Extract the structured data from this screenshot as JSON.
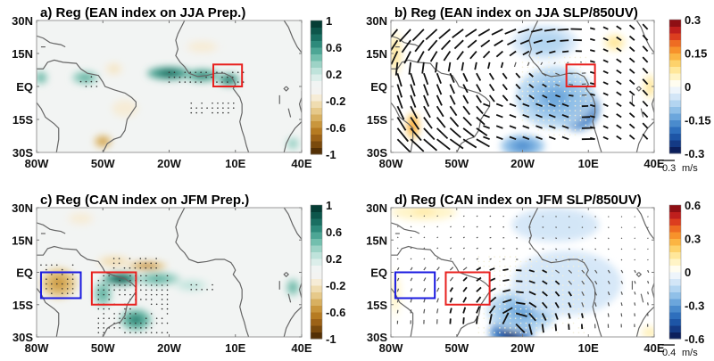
{
  "chart_data": [
    {
      "id": "a",
      "type": "heatmap",
      "title": "a) Reg (EAN index on JJA Prep.)",
      "field": "precipitation",
      "palette": "brown-green",
      "xlim": [
        -80,
        40
      ],
      "ylim": [
        -30,
        30
      ],
      "xticks": [
        "80W",
        "50W",
        "20W",
        "10E",
        "40E"
      ],
      "xtick_values": [
        -80,
        -50,
        -20,
        10,
        40
      ],
      "yticks": [
        "30N",
        "15N",
        "EQ",
        "15S",
        "30S"
      ],
      "ytick_values": [
        30,
        15,
        0,
        -15,
        -30
      ],
      "colorbar": {
        "labels": [
          "1",
          "0.6",
          "0.2",
          "-0.2",
          "-0.6",
          "-1"
        ],
        "range": [
          -1,
          1
        ]
      },
      "boxes": [
        {
          "color": "#e8201e",
          "lon": [
            0,
            13
          ],
          "lat": [
            0,
            10
          ]
        }
      ],
      "blobs": [
        {
          "lon": -20,
          "lat": 6,
          "rx": 10,
          "ry": 3,
          "v": 0.85
        },
        {
          "lon": -5,
          "lat": 5,
          "rx": 8,
          "ry": 3,
          "v": 0.7
        },
        {
          "lon": 7,
          "lat": 3,
          "rx": 5,
          "ry": 3,
          "v": 0.8
        },
        {
          "lon": -58,
          "lat": 4,
          "rx": 6,
          "ry": 3,
          "v": 0.55
        },
        {
          "lon": -78,
          "lat": 4,
          "rx": 3,
          "ry": 3,
          "v": 0.5
        },
        {
          "lon": -45,
          "lat": 8,
          "rx": 4,
          "ry": 3,
          "v": -0.25
        },
        {
          "lon": -50,
          "lat": -25,
          "rx": 4,
          "ry": 3,
          "v": -0.55
        },
        {
          "lon": -40,
          "lat": -10,
          "rx": 6,
          "ry": 4,
          "v": -0.2
        },
        {
          "lon": -5,
          "lat": 18,
          "rx": 10,
          "ry": 4,
          "v": -0.15
        },
        {
          "lon": 36,
          "lat": -26,
          "rx": 3,
          "ry": 3,
          "v": 0.4
        }
      ],
      "stipple_regions": [
        {
          "lon": [
            -20,
            15
          ],
          "lat": [
            2,
            8
          ]
        },
        {
          "lon": [
            -10,
            10
          ],
          "lat": [
            -12,
            -6
          ]
        },
        {
          "lon": [
            -60,
            -52
          ],
          "lat": [
            0,
            5
          ]
        }
      ]
    },
    {
      "id": "b",
      "type": "heatmap",
      "title": "b) Reg (EAN index on JJA SLP/850UV)",
      "field": "SLP with 850hPa wind vectors",
      "palette": "blue-red",
      "xlim": [
        -80,
        40
      ],
      "ylim": [
        -30,
        30
      ],
      "xticks": [
        "80W",
        "50W",
        "20W",
        "10E",
        "40E"
      ],
      "xtick_values": [
        -80,
        -50,
        -20,
        10,
        40
      ],
      "yticks": [
        "30N",
        "15N",
        "EQ",
        "15S",
        "30S"
      ],
      "ytick_values": [
        30,
        15,
        0,
        -15,
        -30
      ],
      "colorbar": {
        "labels": [
          "0.3",
          "0.15",
          "0",
          "-0.15",
          "-0.3"
        ],
        "range": [
          -0.3,
          0.3
        ]
      },
      "vector_reference": {
        "value": "0.3",
        "unit": "m/s"
      },
      "boxes": [
        {
          "color": "#e8201e",
          "lon": [
            0,
            13
          ],
          "lat": [
            0,
            10
          ]
        }
      ],
      "blobs": [
        {
          "lon": 5,
          "lat": -10,
          "rx": 10,
          "ry": 10,
          "v": -0.3
        },
        {
          "lon": -5,
          "lat": -5,
          "rx": 18,
          "ry": 14,
          "v": -0.15
        },
        {
          "lon": -20,
          "lat": -27,
          "rx": 10,
          "ry": 5,
          "v": -0.18
        },
        {
          "lon": -10,
          "lat": 20,
          "rx": 15,
          "ry": 8,
          "v": -0.08
        },
        {
          "lon": -70,
          "lat": -18,
          "rx": 3,
          "ry": 6,
          "v": 0.15
        },
        {
          "lon": -78,
          "lat": 15,
          "rx": 3,
          "ry": 10,
          "v": 0.08
        },
        {
          "lon": 22,
          "lat": 20,
          "rx": 5,
          "ry": 4,
          "v": 0.08
        },
        {
          "lon": 38,
          "lat": 0,
          "rx": 3,
          "ry": 6,
          "v": 0.08
        }
      ],
      "stipple_regions": [
        {
          "lon": [
            -20,
            12
          ],
          "lat": [
            -22,
            15
          ]
        }
      ]
    },
    {
      "id": "c",
      "type": "heatmap",
      "title": "c) Reg (CAN index on JFM Prep.)",
      "field": "precipitation",
      "palette": "brown-green",
      "xlim": [
        -80,
        40
      ],
      "ylim": [
        -30,
        30
      ],
      "xticks": [
        "80W",
        "50W",
        "20W",
        "10E",
        "40E"
      ],
      "xtick_values": [
        -80,
        -50,
        -20,
        10,
        40
      ],
      "yticks": [
        "30N",
        "15N",
        "EQ",
        "15S",
        "30S"
      ],
      "ytick_values": [
        30,
        15,
        0,
        -15,
        -30
      ],
      "colorbar": {
        "labels": [
          "1",
          "0.6",
          "0.2",
          "-0.2",
          "-0.6",
          "-1"
        ],
        "range": [
          -1,
          1
        ]
      },
      "boxes": [
        {
          "color": "#1a1ae0",
          "lon": [
            -78,
            -60
          ],
          "lat": [
            -12,
            0
          ]
        },
        {
          "color": "#e8201e",
          "lon": [
            -55,
            -35
          ],
          "lat": [
            -15,
            0
          ]
        }
      ],
      "blobs": [
        {
          "lon": -42,
          "lat": -3,
          "rx": 8,
          "ry": 3,
          "v": 0.95
        },
        {
          "lon": -25,
          "lat": -3,
          "rx": 10,
          "ry": 3,
          "v": 0.55
        },
        {
          "lon": -50,
          "lat": -10,
          "rx": 4,
          "ry": 6,
          "v": 0.5
        },
        {
          "lon": -35,
          "lat": -22,
          "rx": 7,
          "ry": 5,
          "v": 0.7
        },
        {
          "lon": -10,
          "lat": -6,
          "rx": 8,
          "ry": 3,
          "v": 0.25
        },
        {
          "lon": 36,
          "lat": -7,
          "rx": 3,
          "ry": 4,
          "v": 0.5
        },
        {
          "lon": -70,
          "lat": -5,
          "rx": 8,
          "ry": 7,
          "v": -0.6
        },
        {
          "lon": -30,
          "lat": 3,
          "rx": 9,
          "ry": 2,
          "v": -0.65
        },
        {
          "lon": -45,
          "lat": 5,
          "rx": 8,
          "ry": 3,
          "v": -0.3
        },
        {
          "lon": -60,
          "lat": 25,
          "rx": 8,
          "ry": 4,
          "v": -0.15
        }
      ],
      "stipple_regions": [
        {
          "lon": [
            -78,
            -62
          ],
          "lat": [
            -12,
            5
          ]
        },
        {
          "lon": [
            -52,
            -20
          ],
          "lat": [
            -28,
            0
          ]
        },
        {
          "lon": [
            -45,
            -25
          ],
          "lat": [
            2,
            7
          ]
        },
        {
          "lon": [
            -10,
            0
          ],
          "lat": [
            -8,
            -4
          ]
        }
      ]
    },
    {
      "id": "d",
      "type": "heatmap",
      "title": "d) Reg (CAN index on JFM SLP/850UV)",
      "field": "SLP with 850hPa wind vectors",
      "palette": "blue-red",
      "xlim": [
        -80,
        40
      ],
      "ylim": [
        -30,
        30
      ],
      "xticks": [
        "80W",
        "50W",
        "20W",
        "10E",
        "40E"
      ],
      "xtick_values": [
        -80,
        -50,
        -20,
        10,
        40
      ],
      "yticks": [
        "30N",
        "15N",
        "EQ",
        "15S",
        "30S"
      ],
      "ytick_values": [
        30,
        15,
        0,
        -15,
        -30
      ],
      "colorbar": {
        "labels": [
          "0.6",
          "0.3",
          "0",
          "-0.3",
          "-0.6"
        ],
        "range": [
          -0.6,
          0.6
        ]
      },
      "vector_reference": {
        "value": "0.4",
        "unit": "m/s"
      },
      "boxes": [
        {
          "color": "#1a1ae0",
          "lon": [
            -78,
            -60
          ],
          "lat": [
            -12,
            0
          ]
        },
        {
          "color": "#e8201e",
          "lon": [
            -55,
            -35
          ],
          "lat": [
            -15,
            0
          ]
        }
      ],
      "blobs": [
        {
          "lon": -25,
          "lat": -28,
          "rx": 10,
          "ry": 7,
          "v": -0.55
        },
        {
          "lon": -20,
          "lat": -18,
          "rx": 16,
          "ry": 10,
          "v": -0.25
        },
        {
          "lon": 0,
          "lat": -5,
          "rx": 25,
          "ry": 15,
          "v": -0.12
        },
        {
          "lon": -5,
          "lat": 22,
          "rx": 20,
          "ry": 8,
          "v": -0.12
        },
        {
          "lon": -65,
          "lat": 28,
          "rx": 15,
          "ry": 4,
          "v": 0.12
        },
        {
          "lon": -78,
          "lat": -10,
          "rx": 3,
          "ry": 12,
          "v": 0.08
        },
        {
          "lon": 38,
          "lat": -28,
          "rx": 4,
          "ry": 3,
          "v": 0.12
        }
      ],
      "stipple_regions": [
        {
          "lon": [
            -40,
            10
          ],
          "lat": [
            -28,
            8
          ]
        }
      ]
    }
  ]
}
